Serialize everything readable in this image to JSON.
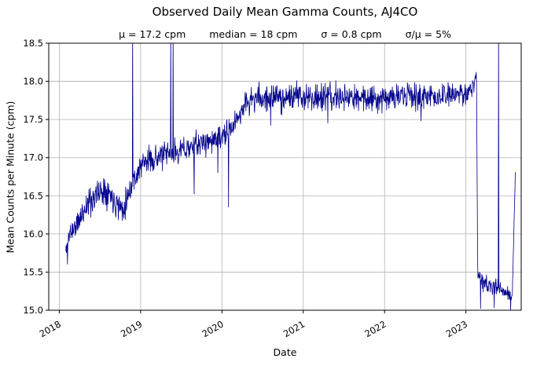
{
  "chart_data": {
    "type": "line",
    "title": "Observed Daily Mean Gamma Counts, AJ4CO",
    "stats": [
      "μ = 17.2 cpm",
      "median = 18 cpm",
      "σ = 0.8 cpm",
      "σ/μ = 5%"
    ],
    "xlabel": "Date",
    "ylabel": "Mean Counts per Minute (cpm)",
    "xlim": [
      2017.87,
      2023.68
    ],
    "ylim": [
      15.0,
      18.5
    ],
    "xticks": [
      2018,
      2019,
      2020,
      2021,
      2022,
      2023
    ],
    "yticks": [
      15.0,
      15.5,
      16.0,
      16.5,
      17.0,
      17.5,
      18.0,
      18.5
    ],
    "grid": true,
    "legend": "none",
    "line_color": "#00008b",
    "grid_color": "#b3b3b3",
    "background": "#ffffff",
    "sample_step_days": 1.5,
    "trend": [
      {
        "x": 2018.08,
        "y": 15.75,
        "n": 0.08
      },
      {
        "x": 2018.13,
        "y": 16.02,
        "n": 0.08
      },
      {
        "x": 2018.22,
        "y": 16.12,
        "n": 0.09
      },
      {
        "x": 2018.32,
        "y": 16.35,
        "n": 0.1
      },
      {
        "x": 2018.45,
        "y": 16.52,
        "n": 0.1
      },
      {
        "x": 2018.57,
        "y": 16.6,
        "n": 0.1
      },
      {
        "x": 2018.68,
        "y": 16.45,
        "n": 0.1
      },
      {
        "x": 2018.78,
        "y": 16.32,
        "n": 0.09
      },
      {
        "x": 2018.9,
        "y": 16.68,
        "n": 0.09
      },
      {
        "x": 2019.02,
        "y": 16.92,
        "n": 0.08
      },
      {
        "x": 2019.18,
        "y": 17.0,
        "n": 0.08
      },
      {
        "x": 2019.4,
        "y": 17.06,
        "n": 0.08
      },
      {
        "x": 2019.62,
        "y": 17.14,
        "n": 0.08
      },
      {
        "x": 2019.85,
        "y": 17.22,
        "n": 0.08
      },
      {
        "x": 2020.02,
        "y": 17.27,
        "n": 0.08
      },
      {
        "x": 2020.13,
        "y": 17.4,
        "n": 0.08
      },
      {
        "x": 2020.28,
        "y": 17.7,
        "n": 0.08
      },
      {
        "x": 2020.42,
        "y": 17.78,
        "n": 0.09
      },
      {
        "x": 2021.0,
        "y": 17.8,
        "n": 0.09
      },
      {
        "x": 2021.6,
        "y": 17.78,
        "n": 0.09
      },
      {
        "x": 2022.2,
        "y": 17.8,
        "n": 0.09
      },
      {
        "x": 2022.8,
        "y": 17.8,
        "n": 0.09
      },
      {
        "x": 2023.0,
        "y": 17.85,
        "n": 0.07
      },
      {
        "x": 2023.1,
        "y": 17.95,
        "n": 0.06
      },
      {
        "x": 2023.13,
        "y": 18.15,
        "n": 0.03
      },
      {
        "x": 2023.145,
        "y": 15.45,
        "n": 0.05
      },
      {
        "x": 2023.25,
        "y": 15.32,
        "n": 0.06
      },
      {
        "x": 2023.4,
        "y": 15.28,
        "n": 0.06
      },
      {
        "x": 2023.53,
        "y": 15.2,
        "n": 0.05
      },
      {
        "x": 2023.57,
        "y": 15.15,
        "n": 0.03
      },
      {
        "x": 2023.61,
        "y": 16.9,
        "n": 0.02
      }
    ],
    "spikes": [
      {
        "x": 2018.1,
        "y": 15.6
      },
      {
        "x": 2018.9,
        "y": 18.7
      },
      {
        "x": 2019.37,
        "y": 18.7
      },
      {
        "x": 2019.4,
        "y": 18.7
      },
      {
        "x": 2019.66,
        "y": 16.52
      },
      {
        "x": 2019.95,
        "y": 16.8
      },
      {
        "x": 2020.08,
        "y": 16.35
      },
      {
        "x": 2020.6,
        "y": 17.42
      },
      {
        "x": 2021.3,
        "y": 17.45
      },
      {
        "x": 2022.45,
        "y": 17.48
      },
      {
        "x": 2023.18,
        "y": 15.02
      },
      {
        "x": 2023.35,
        "y": 15.03
      },
      {
        "x": 2023.4,
        "y": 18.7
      },
      {
        "x": 2023.55,
        "y": 15.0
      }
    ]
  }
}
